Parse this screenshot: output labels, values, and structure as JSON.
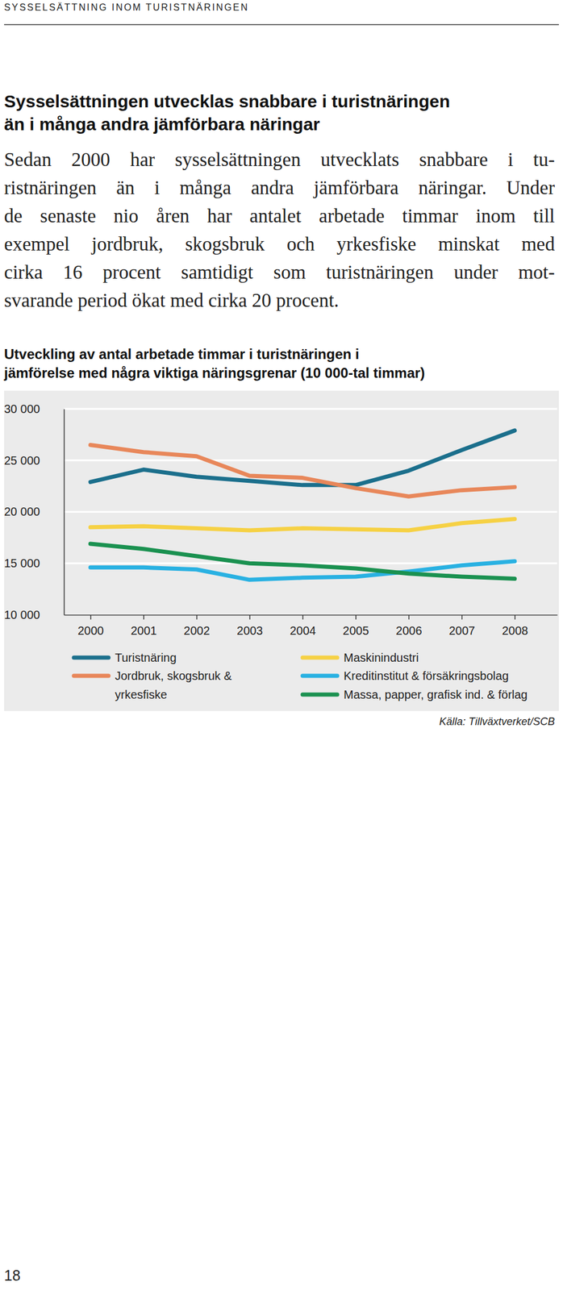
{
  "page": {
    "header": "SYSSELSÄTTNING INOM TURISTNÄRINGEN",
    "heading": [
      "Sysselsättningen utvecklas snabbare i turistnäringen",
      "än i många andra jämförbara näringar"
    ],
    "paragraph": [
      "Sedan 2000 har sysselsättningen utvecklats snabbare i tu-",
      "ristnäringen än i många andra jämförbara näringar. Under",
      "de senaste nio åren har antalet arbetade timmar inom till",
      "exempel jordbruk, skogsbruk och yrkesfiske minskat med",
      "cirka 16 procent samtidigt som turistnäringen under mot-",
      "svarande period ökat med cirka 20 procent."
    ],
    "page_number": "18"
  },
  "chart_data": {
    "type": "line",
    "title": [
      "Utveckling av antal arbetade timmar i turistnäringen i",
      "jämförelse med några viktiga näringsgrenar (10 000-tal timmar)"
    ],
    "source": "Källa: Tillväxtverket/SCB",
    "x": [
      2000,
      2001,
      2002,
      2003,
      2004,
      2005,
      2006,
      2007,
      2008
    ],
    "xlim": [
      1999.5,
      2008.8
    ],
    "xticks": [
      2000,
      2001,
      2002,
      2003,
      2004,
      2005,
      2006,
      2007,
      2008
    ],
    "ylim": [
      10000,
      30000
    ],
    "yticks": [
      {
        "value": 10000,
        "label": "10 000"
      },
      {
        "value": 15000,
        "label": "15 000"
      },
      {
        "value": 20000,
        "label": "20 000"
      },
      {
        "value": 25000,
        "label": "25 000"
      },
      {
        "value": 30000,
        "label": "30 000"
      }
    ],
    "grid": true,
    "legend": "bottom",
    "series": [
      {
        "name": "Turistnäring",
        "color": "#1b6f8c",
        "values": [
          22900,
          24100,
          23400,
          23000,
          22600,
          22600,
          24000,
          26000,
          27900
        ]
      },
      {
        "name": "Jordbruk, skogsbruk & yrkesfiske",
        "color": "#e8875a",
        "values": [
          26500,
          25800,
          25400,
          23500,
          23300,
          22300,
          21500,
          22100,
          22400
        ]
      },
      {
        "name": "Maskinindustri",
        "color": "#f6d144",
        "values": [
          18500,
          18600,
          18400,
          18200,
          18400,
          18300,
          18200,
          18900,
          19300
        ]
      },
      {
        "name": "Kreditinstitut & försäkringsbolag",
        "color": "#29b1e2",
        "values": [
          14600,
          14600,
          14400,
          13400,
          13600,
          13700,
          14200,
          14800,
          15200
        ]
      },
      {
        "name": "Massa, papper, grafisk ind. & förlag",
        "color": "#1a9150",
        "values": [
          16900,
          16400,
          15700,
          15000,
          14800,
          14500,
          14000,
          13700,
          13500
        ]
      }
    ]
  }
}
